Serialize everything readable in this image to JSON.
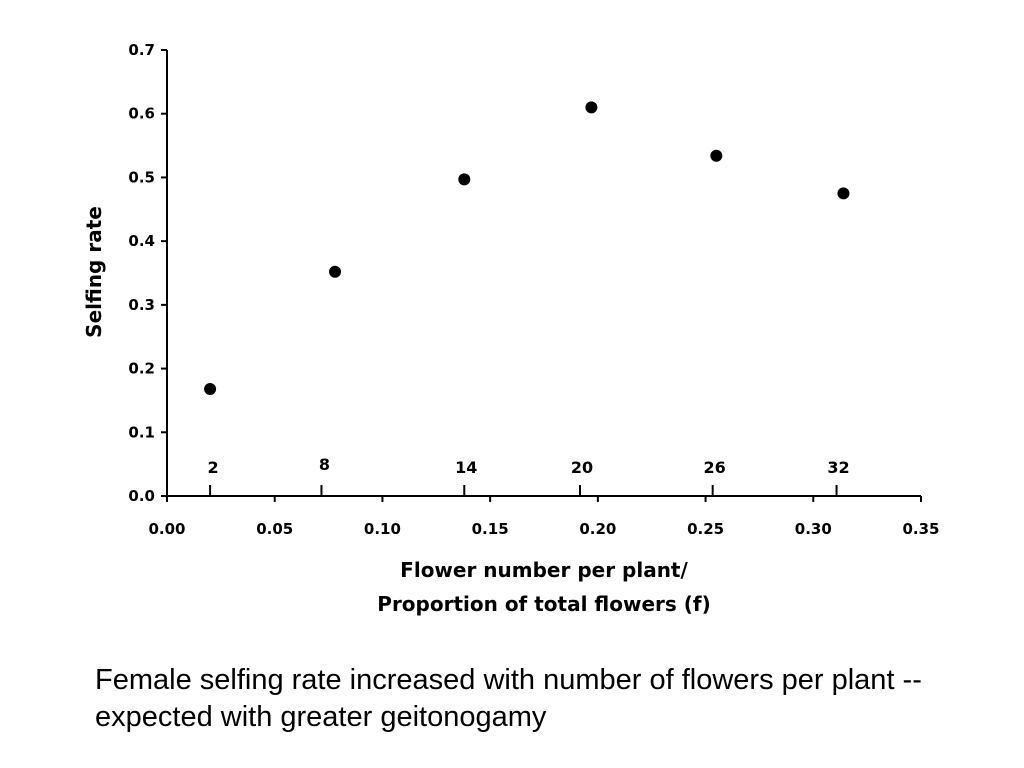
{
  "chart_data": {
    "type": "scatter",
    "x": [
      0.02,
      0.078,
      0.138,
      0.197,
      0.255,
      0.314
    ],
    "y": [
      0.168,
      0.352,
      0.497,
      0.61,
      0.534,
      0.475
    ],
    "flower_numbers": [
      {
        "label": "2",
        "x": 0.02
      },
      {
        "label": "8",
        "x": 0.0717
      },
      {
        "label": "14",
        "x": 0.138
      },
      {
        "label": "20",
        "x": 0.1917
      },
      {
        "label": "26",
        "x": 0.2533
      },
      {
        "label": "32",
        "x": 0.3108
      }
    ],
    "xlim": [
      0,
      0.35
    ],
    "ylim": [
      0,
      0.7
    ],
    "x_ticks": [
      "0.00",
      "0.05",
      "0.10",
      "0.15",
      "0.20",
      "0.25",
      "0.30",
      "0.35"
    ],
    "y_ticks": [
      "0.0",
      "0.1",
      "0.2",
      "0.3",
      "0.4",
      "0.5",
      "0.6",
      "0.7"
    ],
    "xlabel_line1": "Flower number per plant/",
    "xlabel_line2": "Proportion of total flowers (f)",
    "ylabel": "Selfing rate",
    "grid": false,
    "marker_color": "#000000"
  },
  "caption": "Female selfing rate increased with number of flowers per plant -- expected with greater geitonogamy"
}
